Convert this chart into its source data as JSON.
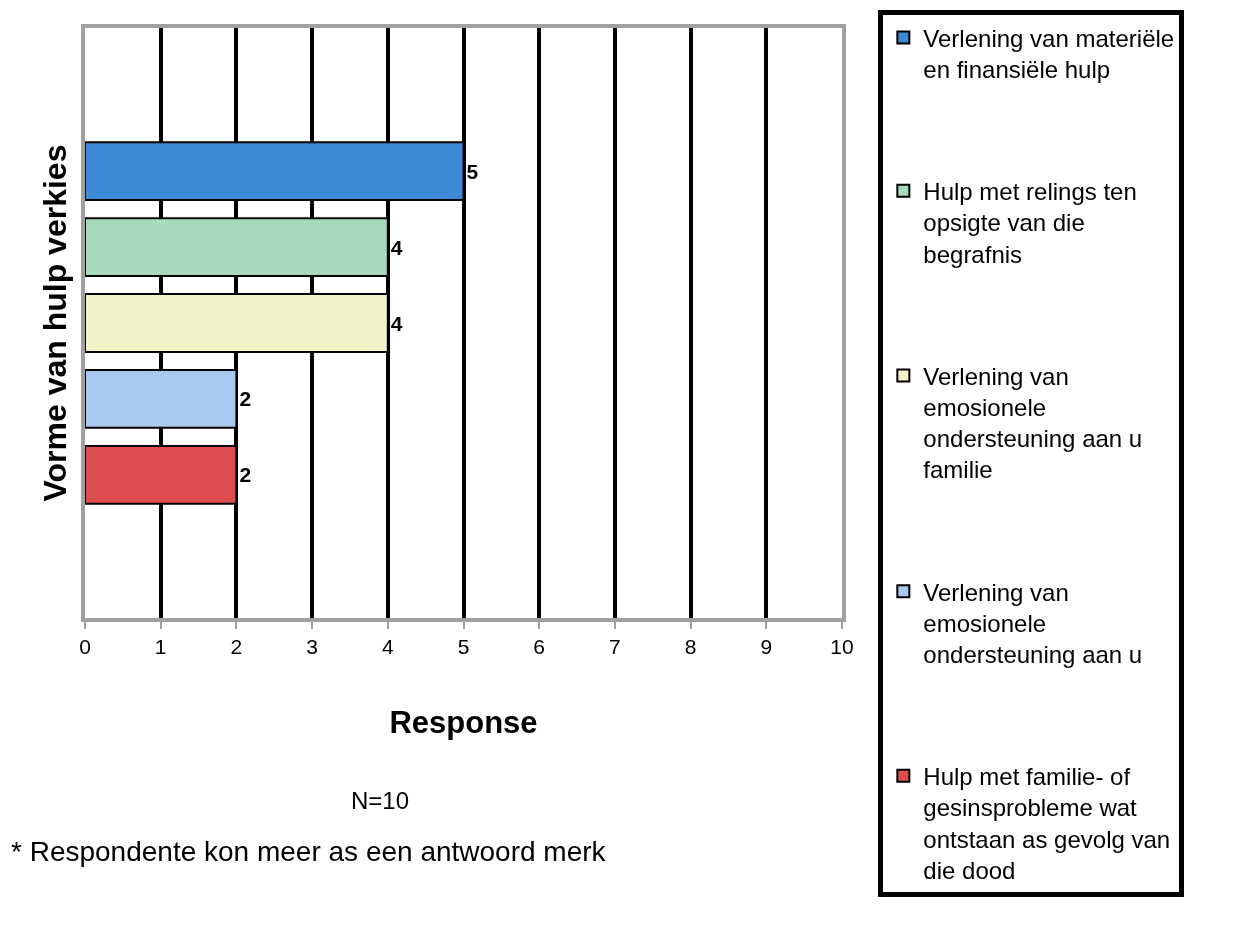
{
  "chart_data": {
    "type": "bar",
    "orientation": "horizontal",
    "xlabel": "Response",
    "ylabel": "Vorme van hulp verkies",
    "annotations": [
      "N=10",
      "* Respondente kon meer as een antwoord merk"
    ],
    "categories": [
      null
    ],
    "series": [
      {
        "name": "Verlening van materiële en finansiële hulp",
        "color": "#3d8ad6",
        "values": [
          5
        ]
      },
      {
        "name": "Hulp met relings ten opsigte van die begrafnis",
        "color": "#a6dbbd",
        "values": [
          4
        ]
      },
      {
        "name": "Verlening van emosionele ondersteuning aan u familie",
        "color": "#f3f3c8",
        "values": [
          4
        ]
      },
      {
        "name": "Verlening van emosionele ondersteuning aan u",
        "color": "#a9c9f0",
        "values": [
          2
        ]
      },
      {
        "name": "Hulp met familie- of gesinsprobleme wat ontstaan as gevolg van die dood",
        "color": "#de4d4d",
        "values": [
          2
        ]
      }
    ],
    "xlim": [
      0,
      10
    ],
    "xticks": [
      0,
      1,
      2,
      3,
      4,
      5,
      6,
      7,
      8,
      9,
      10
    ],
    "grid": "x",
    "legend": "right",
    "data_labels": true,
    "tick_labels": "x"
  }
}
